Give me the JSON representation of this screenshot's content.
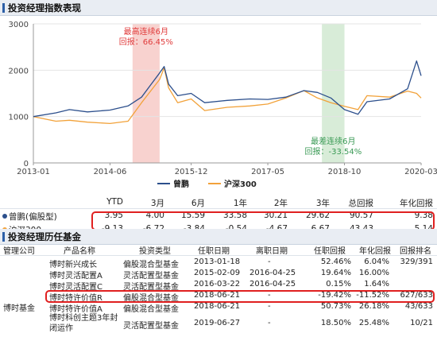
{
  "section1": {
    "title": "投资经理指数表现"
  },
  "chart_data": {
    "type": "line",
    "x_ticks": [
      "2013-01",
      "2014-06",
      "2015-12",
      "2017-05",
      "2018-10",
      "2020-03"
    ],
    "y_ticks": [
      "0",
      "1000",
      "2000",
      "3000"
    ],
    "ylim": [
      0,
      3000
    ],
    "xlim": [
      "2013-01",
      "2020-03"
    ],
    "grid": true,
    "legend_position": "bottom",
    "series": [
      {
        "name": "曾鹏",
        "color": "#2c4f8c",
        "x": [
          "2013-01",
          "2013-06",
          "2013-09",
          "2014-01",
          "2014-06",
          "2014-10",
          "2015-01",
          "2015-03",
          "2015-05",
          "2015-06",
          "2015-07",
          "2015-09",
          "2015-12",
          "2016-03",
          "2016-08",
          "2017-01",
          "2017-05",
          "2017-09",
          "2018-01",
          "2018-04",
          "2018-07",
          "2018-10",
          "2019-01",
          "2019-03",
          "2019-08",
          "2019-12",
          "2020-02",
          "2020-03"
        ],
        "values": [
          1000,
          1080,
          1150,
          1100,
          1140,
          1230,
          1420,
          1680,
          1940,
          2080,
          1700,
          1450,
          1500,
          1300,
          1350,
          1380,
          1370,
          1420,
          1560,
          1520,
          1400,
          1150,
          1050,
          1320,
          1380,
          1600,
          2200,
          1880
        ]
      },
      {
        "name": "沪深300",
        "color": "#f2a23a",
        "x": [
          "2013-01",
          "2013-06",
          "2013-09",
          "2014-01",
          "2014-06",
          "2014-10",
          "2015-01",
          "2015-03",
          "2015-05",
          "2015-06",
          "2015-07",
          "2015-09",
          "2015-12",
          "2016-03",
          "2016-08",
          "2017-01",
          "2017-05",
          "2017-09",
          "2018-01",
          "2018-04",
          "2018-07",
          "2018-10",
          "2019-01",
          "2019-03",
          "2019-08",
          "2019-12",
          "2020-02",
          "2020-03"
        ],
        "values": [
          1000,
          900,
          920,
          880,
          850,
          900,
          1300,
          1550,
          1800,
          2050,
          1620,
          1300,
          1380,
          1130,
          1200,
          1230,
          1270,
          1400,
          1560,
          1400,
          1300,
          1220,
          1150,
          1450,
          1420,
          1550,
          1500,
          1400
        ]
      }
    ],
    "highlights": [
      {
        "label": "最高连续6月",
        "sublabel": "回报：66.45%",
        "from": "2014-11",
        "to": "2015-05",
        "color": "#f8d2cf",
        "text_color": "#e03b3b"
      },
      {
        "label": "最差连续6月",
        "sublabel": "回报：-33.54%",
        "from": "2018-05",
        "to": "2018-10",
        "color": "#d8ecd8",
        "text_color": "#3a9a55"
      }
    ]
  },
  "performance": {
    "headers": [
      "YTD",
      "3月",
      "6月",
      "1年",
      "2年",
      "3年",
      "总回报",
      "年化回报"
    ],
    "rows": [
      {
        "name": "曾鹏(偏股型)",
        "color": "#2c4f8c",
        "values": [
          "3.95",
          "4.00",
          "15.59",
          "33.58",
          "30.21",
          "29.62",
          "90.57",
          "9.38"
        ]
      },
      {
        "name": "沪深300",
        "color": "#f2a23a",
        "values": [
          "-9.13",
          "-6.72",
          "-3.84",
          "-0.54",
          "-4.67",
          "6.67",
          "43.43",
          "5.14"
        ]
      }
    ]
  },
  "section2": {
    "title": "投资经理历任基金"
  },
  "history": {
    "headers": [
      "管理公司",
      "产品名称",
      "投资类型",
      "任职日期",
      "离职日期",
      "任职回报",
      "年化回报",
      "回报排名"
    ],
    "company": "博时基金",
    "rows": [
      [
        "博时新兴成长",
        "偏股混合型基金",
        "2013-01-18",
        "-",
        "52.46%",
        "6.04%",
        "329/391"
      ],
      [
        "博时灵活配置A",
        "灵活配置型基金",
        "2015-02-09",
        "2016-04-25",
        "19.64%",
        "16.00%",
        ""
      ],
      [
        "博时灵活配置C",
        "灵活配置型基金",
        "2016-03-22",
        "2016-04-25",
        "0.15%",
        "1.64%",
        ""
      ],
      [
        "博时特许价值R",
        "偏股混合型基金",
        "2018-06-21",
        "-",
        "-19.42%",
        "-11.52%",
        "627/633"
      ],
      [
        "博时特许价值A",
        "偏股混合型基金",
        "2018-06-21",
        "-",
        "50.73%",
        "26.18%",
        "43/633"
      ],
      [
        "博时科创主题3年封闭运作",
        "灵活配置型基金",
        "2019-06-27",
        "-",
        "18.50%",
        "25.48%",
        "10/21"
      ]
    ]
  }
}
